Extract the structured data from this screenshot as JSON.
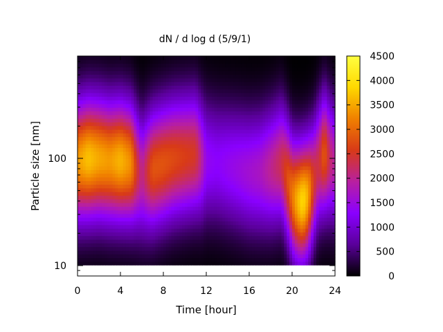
{
  "chart_data": {
    "type": "heatmap",
    "title": "dN / d log d (5/9/1)",
    "xlabel": "Time [hour]",
    "ylabel": "Particle size [nm]",
    "xlim": [
      0,
      24
    ],
    "ylim_nm": [
      8,
      900
    ],
    "y_scale": "log",
    "x_ticks": [
      0,
      4,
      8,
      12,
      16,
      20,
      24
    ],
    "x_tick_labels": [
      "0",
      "4",
      "8",
      "12",
      "16",
      "20",
      "24"
    ],
    "y_ticks": [
      10,
      100
    ],
    "y_tick_labels": [
      "10",
      "100"
    ],
    "colorbar": {
      "min": 0,
      "max": 4500,
      "ticks": [
        0,
        500,
        1000,
        1500,
        2000,
        2500,
        3000,
        3500,
        4000,
        4500
      ],
      "tick_labels": [
        "0",
        "500",
        "1000",
        "1500",
        "2000",
        "2500",
        "3000",
        "3500",
        "4000",
        "4500"
      ],
      "palette": [
        "#000000",
        "#5a009a",
        "#8a00ff",
        "#b820a0",
        "#d83a18",
        "#f08000",
        "#ffd800",
        "#ffff40"
      ]
    },
    "time_profile": {
      "hours": [
        0,
        1,
        2,
        3,
        4,
        5,
        5.5,
        6,
        7,
        8,
        9,
        10,
        11,
        11.5,
        12,
        13,
        14,
        15,
        16,
        17,
        18,
        19,
        20,
        20.5,
        21,
        21.5,
        22,
        22.5,
        23,
        23.5,
        24
      ],
      "peak_size_nm": [
        95,
        100,
        100,
        95,
        95,
        90,
        80,
        70,
        80,
        90,
        100,
        105,
        110,
        100,
        95,
        90,
        85,
        80,
        75,
        75,
        80,
        90,
        45,
        40,
        40,
        45,
        60,
        90,
        110,
        100,
        90
      ],
      "peak_dN_dlogd": [
        3400,
        3700,
        3500,
        3400,
        3600,
        3300,
        2500,
        2000,
        2800,
        2800,
        2700,
        2600,
        2500,
        2000,
        1400,
        1300,
        1400,
        1500,
        1600,
        1700,
        2000,
        2300,
        3100,
        3600,
        3900,
        3500,
        2500,
        2300,
        2900,
        2200,
        1900
      ]
    }
  }
}
